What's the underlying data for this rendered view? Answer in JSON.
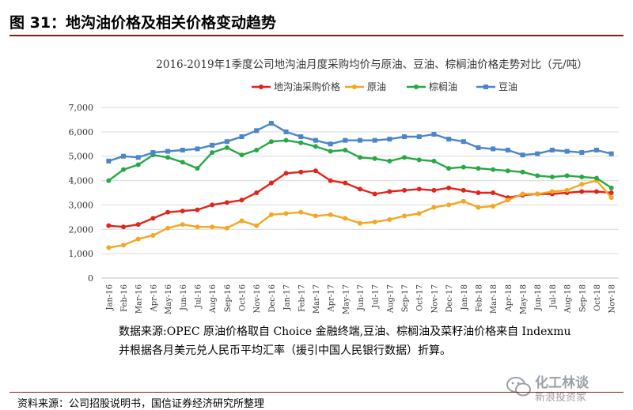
{
  "figure": {
    "title": "图 31：地沟油价格及相关价格变动趋势",
    "note_line1": "数据来源:OPEC 原油价格取自 Choice 金融终端,豆油、棕榈油及菜籽油价格来自 Indexmu",
    "note_line2": "并根据各月美元兑人民币平均汇率（援引中国人民银行数据）折算。",
    "source": "资料来源：公司招股说明书，国信证券经济研究所整理",
    "watermark_main": "化工林谈",
    "watermark_sub": "新浪投资家"
  },
  "chart_data": {
    "type": "line",
    "title": "2016-2019年1季度公司地沟油月度采购均价与原油、豆油、棕榈油价格走势对比（元/吨）",
    "ylim": [
      0,
      7000
    ],
    "yticks": [
      "0",
      "1,000",
      "2,000",
      "3,000",
      "4,000",
      "5,000",
      "6,000",
      "7,000"
    ],
    "categories": [
      "Jan-16",
      "Feb-16",
      "Mar-16",
      "Apr-16",
      "May-16",
      "Jun-16",
      "Jul-16",
      "Aug-16",
      "Sep-16",
      "Oct-16",
      "Nov-16",
      "Dec-16",
      "Jan-17",
      "Feb-17",
      "Mar-17",
      "Apr-17",
      "May-17",
      "Jun-17",
      "Jul-17",
      "Aug-17",
      "Sep-17",
      "Oct-17",
      "Nov-17",
      "Dec-17",
      "Jan-18",
      "Feb-18",
      "Mar-18",
      "Apr-18",
      "May-18",
      "Jun-18",
      "Jul-18",
      "Aug-18",
      "Sep-18",
      "Oct-18",
      "Nov-18"
    ],
    "series": [
      {
        "name": "地沟油采购价格",
        "color": "#e2231a",
        "marker": "circle",
        "values": [
          2150,
          2100,
          2200,
          2450,
          2700,
          2750,
          2800,
          3000,
          3100,
          3200,
          3500,
          3900,
          4300,
          4350,
          4400,
          4000,
          3900,
          3650,
          3450,
          3550,
          3600,
          3650,
          3600,
          3700,
          3600,
          3500,
          3500,
          3300,
          3400,
          3450,
          3450,
          3500,
          3550,
          3550,
          3500
        ]
      },
      {
        "name": "原油",
        "color": "#f5a623",
        "marker": "circle",
        "values": [
          1250,
          1350,
          1600,
          1750,
          2050,
          2200,
          2100,
          2100,
          2050,
          2350,
          2150,
          2600,
          2650,
          2700,
          2550,
          2600,
          2450,
          2250,
          2300,
          2400,
          2550,
          2650,
          2900,
          3000,
          3150,
          2900,
          2950,
          3200,
          3450,
          3450,
          3550,
          3600,
          3850,
          4000,
          3300
        ]
      },
      {
        "name": "棕榈油",
        "color": "#27a844",
        "marker": "circle",
        "values": [
          4000,
          4450,
          4650,
          5050,
          4950,
          4750,
          4500,
          5150,
          5350,
          5050,
          5250,
          5600,
          5650,
          5550,
          5400,
          5200,
          5250,
          4950,
          4900,
          4800,
          4950,
          4850,
          4800,
          4500,
          4550,
          4500,
          4450,
          4400,
          4350,
          4200,
          4150,
          4200,
          4150,
          4100,
          3700
        ]
      },
      {
        "name": "豆油",
        "color": "#4a86c8",
        "marker": "square",
        "values": [
          4800,
          5000,
          4950,
          5150,
          5200,
          5250,
          5300,
          5450,
          5600,
          5800,
          6050,
          6350,
          6000,
          5800,
          5650,
          5500,
          5650,
          5650,
          5650,
          5700,
          5800,
          5800,
          5900,
          5700,
          5600,
          5350,
          5300,
          5250,
          5050,
          5100,
          5250,
          5200,
          5150,
          5250,
          5100
        ]
      }
    ]
  }
}
